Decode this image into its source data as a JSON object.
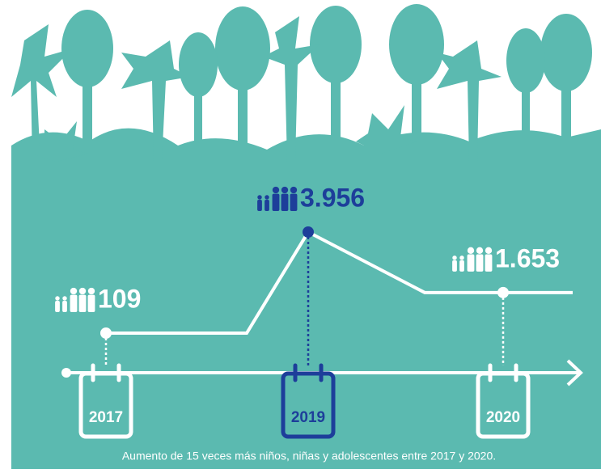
{
  "chart_data": {
    "type": "line",
    "categories": [
      "2017",
      "2019",
      "2020"
    ],
    "values": [
      109,
      3956,
      1653
    ],
    "value_labels": [
      "109",
      "3.956",
      "1.653"
    ],
    "highlight_color": "#1d3e9a",
    "color": "#ffffff",
    "caption": "Aumento de 15 veces más niños, niñas y adolescentes entre 2017 y 2020."
  }
}
